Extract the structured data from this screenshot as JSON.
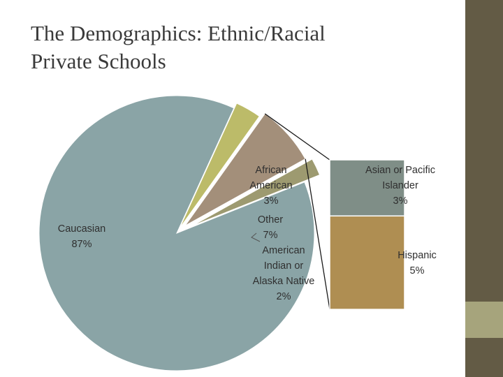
{
  "title": {
    "line1": "The Demographics: Ethnic/Racial",
    "line2": "Private Schools"
  },
  "theme": {
    "band_dark": "#635b45",
    "band_light": "#a6a47c",
    "title_color": "#3a3a3a"
  },
  "chart_data": {
    "type": "bar-of-pie",
    "title": "The Demographics: Ethnic/Racial Private Schools",
    "pie_slices": [
      {
        "label_lines": [
          "Caucasian",
          "87%"
        ],
        "value": 87,
        "color": "#8aa4a6"
      },
      {
        "label_lines": [
          "African",
          "American",
          "3%"
        ],
        "value": 3,
        "color": "#bcbb69"
      },
      {
        "label_lines": [
          "Other",
          "7%"
        ],
        "value": 7,
        "color": "#a38f7a",
        "is_breakout": true
      },
      {
        "label_lines": [
          "American",
          "Indian or",
          "Alaska Native",
          "2%"
        ],
        "value": 2,
        "color": "#9d9a70"
      }
    ],
    "breakout_bar": [
      {
        "label_lines": [
          "Asian or Pacific",
          "Islander",
          "3%"
        ],
        "value": 3,
        "color": "#7f8e87"
      },
      {
        "label_lines": [
          "Hispanic",
          "5%"
        ],
        "value": 5,
        "color": "#af8e52"
      }
    ]
  }
}
